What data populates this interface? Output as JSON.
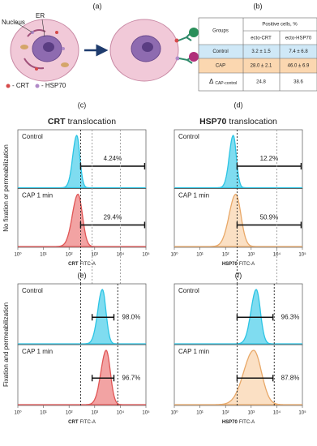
{
  "panel_a": {
    "label": "(a)",
    "nucleus": "Nucleus",
    "er": "ER",
    "legend": [
      "- CRT",
      "- HSP70"
    ]
  },
  "panel_b": {
    "label": "(b)",
    "table": {
      "groups_header": "Groups",
      "span_header": "Positive cells, %",
      "columns": [
        "ecto-CRT",
        "ecto-HSP70"
      ],
      "rows": [
        {
          "name": "Control",
          "cells": [
            "3.2 ± 1.5",
            "7.4 ± 6.8"
          ]
        },
        {
          "name": "CAP",
          "cells": [
            "28.0 ± 2.1",
            "46.0 ± 6.9"
          ]
        },
        {
          "name": {
            "symbol": "Δ",
            "subscript": "CAP-control"
          },
          "cells": [
            "24.8",
            "38.6"
          ]
        }
      ]
    }
  },
  "row_labels": [
    "No fixation or permeabilization",
    "Fixation and permeabilization"
  ],
  "x_ticks": [
    "10⁰",
    "10¹",
    "10²",
    "10³",
    "10⁴",
    "10⁵"
  ],
  "histograms": [
    {
      "label": "(c)",
      "title": {
        "bold": "CRT",
        "rest": "translocation"
      },
      "x_label": {
        "bold": "CRT",
        "rest": "FITC-A"
      },
      "tracks": [
        {
          "name": "Control",
          "percent": "4.24%"
        },
        {
          "name": "CAP 1 min",
          "percent": "29.4%"
        }
      ]
    },
    {
      "label": "(d)",
      "title": {
        "bold": "HSP70",
        "rest": "translocation"
      },
      "x_label": {
        "bold": "HSP70",
        "rest": "FITC-A"
      },
      "tracks": [
        {
          "name": "Control",
          "percent": "12.2%"
        },
        {
          "name": "CAP 1 min",
          "percent": "50.9%"
        }
      ]
    },
    {
      "label": "(e)",
      "x_label": {
        "bold": "CRT",
        "rest": "FITC-A"
      },
      "tracks": [
        {
          "name": "Control",
          "percent": "98.0%"
        },
        {
          "name": "CAP 1 min",
          "percent": "96.7%"
        }
      ]
    },
    {
      "label": "(f)",
      "x_label": {
        "bold": "HSP70",
        "rest": "FITC-A"
      },
      "tracks": [
        {
          "name": "Control",
          "percent": "96.3%"
        },
        {
          "name": "CAP 1 min",
          "percent": "87.8%"
        }
      ]
    }
  ]
}
